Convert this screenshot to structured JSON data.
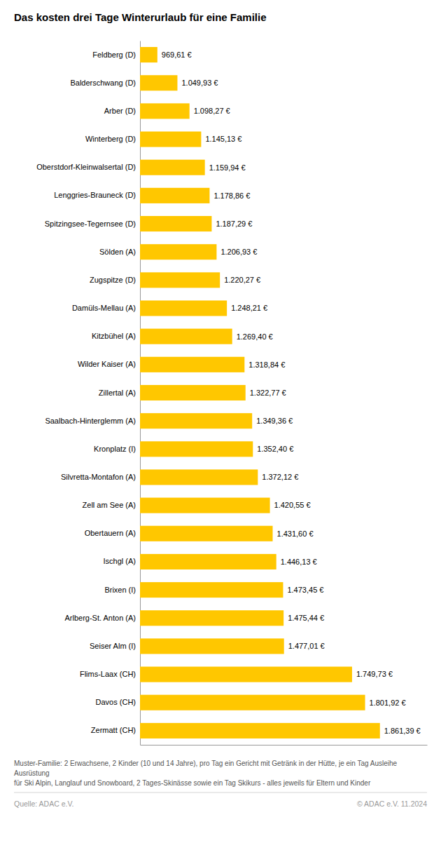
{
  "chart_data": {
    "type": "bar",
    "orientation": "horizontal",
    "title": "Das kosten drei Tage Winterurlaub für eine Familie",
    "categories": [
      "Feldberg (D)",
      "Balderschwang (D)",
      "Arber (D)",
      "Winterberg (D)",
      "Oberstdorf-Kleinwalsertal (D)",
      "Lenggries-Brauneck (D)",
      "Spitzingsee-Tegernsee (D)",
      "Sölden (A)",
      "Zugspitze (D)",
      "Damüls-Mellau (A)",
      "Kitzbühel (A)",
      "Wilder Kaiser (A)",
      "Zillertal (A)",
      "Saalbach-Hinterglemm (A)",
      "Kronplatz (I)",
      "Silvretta-Montafon (A)",
      "Zell am See (A)",
      "Obertauern (A)",
      "Ischgl (A)",
      "Brixen (I)",
      "Arlberg-St. Anton (A)",
      "Seiser Alm (I)",
      "Flims-Laax (CH)",
      "Davos (CH)",
      "Zermatt (CH)"
    ],
    "values": [
      969.61,
      1049.93,
      1098.27,
      1145.13,
      1159.94,
      1178.86,
      1187.29,
      1206.93,
      1220.27,
      1248.21,
      1269.4,
      1318.84,
      1322.77,
      1349.36,
      1352.4,
      1372.12,
      1420.55,
      1431.6,
      1446.13,
      1473.45,
      1475.44,
      1477.01,
      1749.73,
      1801.92,
      1861.39
    ],
    "value_labels": [
      "969,61 €",
      "1.049,93 €",
      "1.098,27 €",
      "1.145,13 €",
      "1.159,94 €",
      "1.178,86 €",
      "1.187,29 €",
      "1.206,93 €",
      "1.220,27 €",
      "1.248,21 €",
      "1.269,40 €",
      "1.318,84 €",
      "1.322,77 €",
      "1.349,36 €",
      "1.352,40 €",
      "1.372,12 €",
      "1.420,55 €",
      "1.431,60 €",
      "1.446,13 €",
      "1.473,45 €",
      "1.475,44 €",
      "1.477,01 €",
      "1.749,73 €",
      "1.801,92 €",
      "1.861,39 €"
    ],
    "data_labels": true,
    "color": "#FFC700",
    "xlim": [
      900,
      2050
    ],
    "xticks": [],
    "tick_labels": "y",
    "grid": false,
    "footnote": [
      "Muster-Familie: 2 Erwachsene, 2 Kinder (10 und 14 Jahre), pro Tag ein Gericht mit Getränk in der Hütte, je ein Tag Ausleihe Ausrüstung",
      "für Ski Alpin, Langlauf und Snowboard, 2 Tages-Skiпässe sowie ein Tag Skikurs - alles jeweils für Eltern und Kinder"
    ],
    "source": "Quelle: ADAC e.V.",
    "copyright": "© ADAC e.V. 11.2024"
  }
}
